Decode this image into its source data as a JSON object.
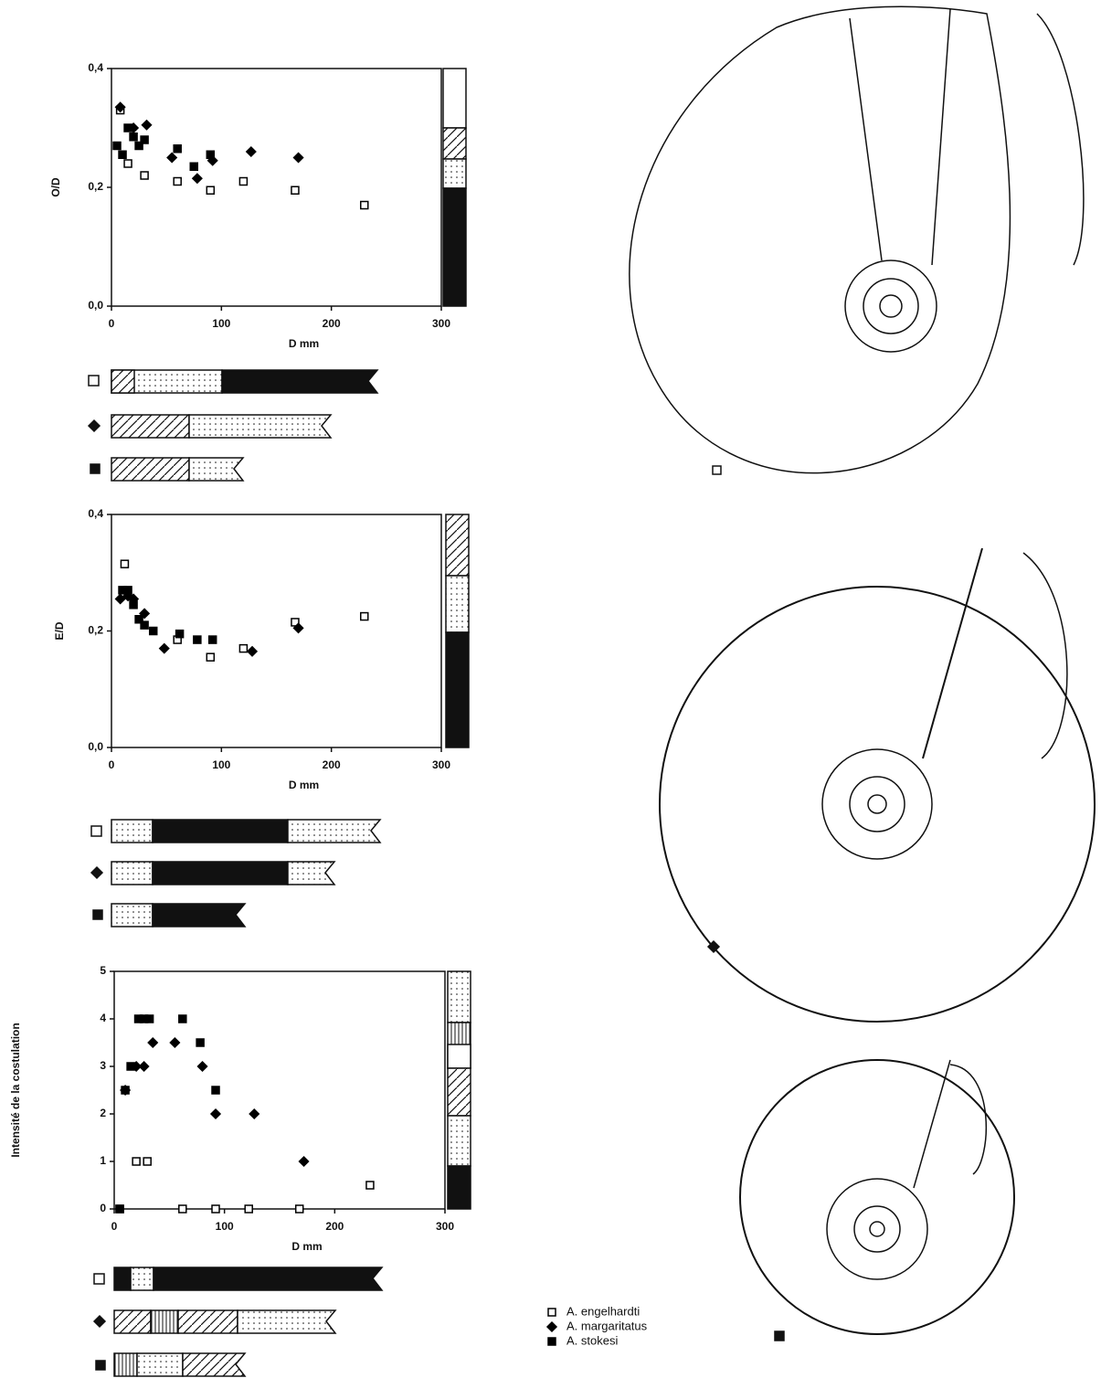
{
  "chart_data": [
    {
      "type": "scatter",
      "x_label": "D mm",
      "y_label": "O/D",
      "xlim": [
        0,
        300
      ],
      "xticks": [
        0,
        100,
        200,
        300
      ],
      "ylim": [
        0,
        0.4
      ],
      "yticks": [
        {
          "value": 0,
          "label": "0,0"
        },
        {
          "value": 0.2,
          "label": "0,2"
        },
        {
          "value": 0.4,
          "label": "0,4"
        }
      ],
      "series": [
        {
          "name": "A. engelhardti",
          "color": "#000000",
          "marker": "square-open",
          "x": [
            8,
            15,
            30,
            60,
            90,
            120,
            167,
            230
          ],
          "values": [
            0.33,
            0.24,
            0.22,
            0.21,
            0.195,
            0.21,
            0.195,
            0.17
          ]
        },
        {
          "name": "A. margaritatus",
          "color": "#000000",
          "marker": "diamond",
          "x": [
            8,
            20,
            32,
            55,
            78,
            92,
            127,
            170
          ],
          "values": [
            0.335,
            0.3,
            0.305,
            0.25,
            0.215,
            0.245,
            0.26,
            0.25
          ]
        },
        {
          "name": "A. stokesi",
          "color": "#000000",
          "marker": "square",
          "x": [
            5,
            10,
            15,
            20,
            25,
            30,
            60,
            75,
            90
          ],
          "values": [
            0.27,
            0.255,
            0.3,
            0.285,
            0.27,
            0.28,
            0.265,
            0.235,
            0.255
          ]
        }
      ]
    },
    {
      "type": "scatter",
      "x_label": "D mm",
      "y_label": "E/D",
      "xlim": [
        0,
        300
      ],
      "xticks": [
        0,
        100,
        200,
        300
      ],
      "ylim": [
        0,
        0.4
      ],
      "yticks": [
        {
          "value": 0,
          "label": "0,0"
        },
        {
          "value": 0.2,
          "label": "0,2"
        },
        {
          "value": 0.4,
          "label": "0,4"
        }
      ],
      "series": [
        {
          "color": "#000000",
          "marker": "square-open",
          "x": [
            12,
            60,
            90,
            120,
            167,
            230
          ],
          "values": [
            0.315,
            0.185,
            0.155,
            0.17,
            0.215,
            0.225
          ]
        },
        {
          "color": "#000000",
          "marker": "diamond",
          "x": [
            8,
            15,
            20,
            30,
            48,
            128,
            170
          ],
          "values": [
            0.255,
            0.26,
            0.255,
            0.23,
            0.17,
            0.165,
            0.205
          ]
        },
        {
          "color": "#000000",
          "marker": "square",
          "x": [
            10,
            15,
            20,
            25,
            30,
            38,
            62,
            78,
            92
          ],
          "values": [
            0.27,
            0.27,
            0.245,
            0.22,
            0.21,
            0.2,
            0.195,
            0.185,
            0.185
          ]
        }
      ]
    },
    {
      "type": "scatter",
      "x_label": "D mm",
      "y_label": "Intensité de la costulation",
      "xlim": [
        0,
        300
      ],
      "xticks": [
        0,
        100,
        200,
        300
      ],
      "ylim": [
        0,
        5
      ],
      "yticks": [
        0,
        1,
        2,
        3,
        4,
        5
      ],
      "series": [
        {
          "color": "#000000",
          "marker": "square-open",
          "x": [
            5,
            20,
            30,
            62,
            92,
            122,
            168,
            232
          ],
          "values": [
            0,
            1,
            1,
            0,
            0,
            0,
            0,
            0.5
          ]
        },
        {
          "color": "#000000",
          "marker": "diamond",
          "x": [
            10,
            20,
            27,
            35,
            55,
            80,
            92,
            127,
            172
          ],
          "values": [
            2.5,
            3,
            3,
            3.5,
            3.5,
            3,
            2,
            2,
            1
          ]
        },
        {
          "color": "#000000",
          "marker": "square",
          "x": [
            5,
            10,
            15,
            22,
            27,
            32,
            62,
            78,
            92
          ],
          "values": [
            0,
            2.5,
            3,
            4,
            4,
            4,
            4,
            3.5,
            2.5
          ]
        }
      ]
    }
  ]
}
